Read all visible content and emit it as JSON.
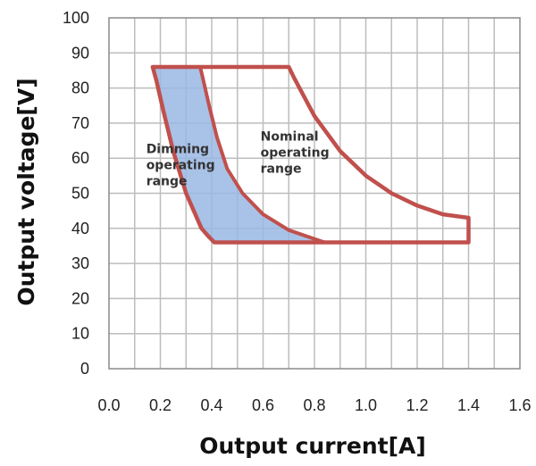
{
  "chart_data": {
    "type": "area",
    "xlabel": "Output current[A]",
    "ylabel": "Output voltage[V]",
    "xlim": [
      0.0,
      1.6
    ],
    "ylim": [
      0,
      100
    ],
    "x_ticks": [
      "0.0",
      "0.2",
      "0.4",
      "0.6",
      "0.8",
      "1.0",
      "1.2",
      "1.4",
      "1.6"
    ],
    "y_ticks": [
      "0",
      "10",
      "20",
      "30",
      "40",
      "50",
      "60",
      "70",
      "80",
      "90",
      "100"
    ],
    "x_minor_grid_step": 0.1,
    "grid": true,
    "series": [
      {
        "color": "#c0504d",
        "fill_color": "#9ab7e3",
        "points": [
          [
            0.17,
            86
          ],
          [
            0.355,
            86
          ],
          [
            0.365,
            83
          ],
          [
            0.39,
            75
          ],
          [
            0.42,
            66
          ],
          [
            0.46,
            57
          ],
          [
            0.52,
            50
          ],
          [
            0.6,
            44
          ],
          [
            0.7,
            39.5
          ],
          [
            0.8,
            37
          ],
          [
            0.84,
            36
          ],
          [
            0.41,
            36
          ],
          [
            0.39,
            37.5
          ],
          [
            0.36,
            40
          ],
          [
            0.3,
            50
          ],
          [
            0.25,
            62
          ],
          [
            0.21,
            74
          ],
          [
            0.185,
            82
          ],
          [
            0.17,
            86
          ]
        ]
      },
      {
        "color": "#c0504d",
        "points": [
          [
            0.17,
            86
          ],
          [
            0.7,
            86
          ],
          [
            0.72,
            83
          ],
          [
            0.8,
            72
          ],
          [
            0.9,
            62
          ],
          [
            1.0,
            55
          ],
          [
            1.1,
            50
          ],
          [
            1.2,
            46.5
          ],
          [
            1.3,
            44
          ],
          [
            1.4,
            43
          ],
          [
            1.4,
            36
          ],
          [
            0.41,
            36
          ],
          [
            0.39,
            37.5
          ],
          [
            0.36,
            40
          ],
          [
            0.3,
            50
          ],
          [
            0.25,
            62
          ],
          [
            0.21,
            74
          ],
          [
            0.185,
            82
          ],
          [
            0.17,
            86
          ]
        ]
      }
    ],
    "annotations": [
      {
        "lines": [
          "Dimming",
          "operating",
          "range"
        ],
        "x": 0.145,
        "y": 61.5
      },
      {
        "lines": [
          "Nominal",
          "operating",
          "range"
        ],
        "x": 0.59,
        "y": 65
      }
    ]
  }
}
